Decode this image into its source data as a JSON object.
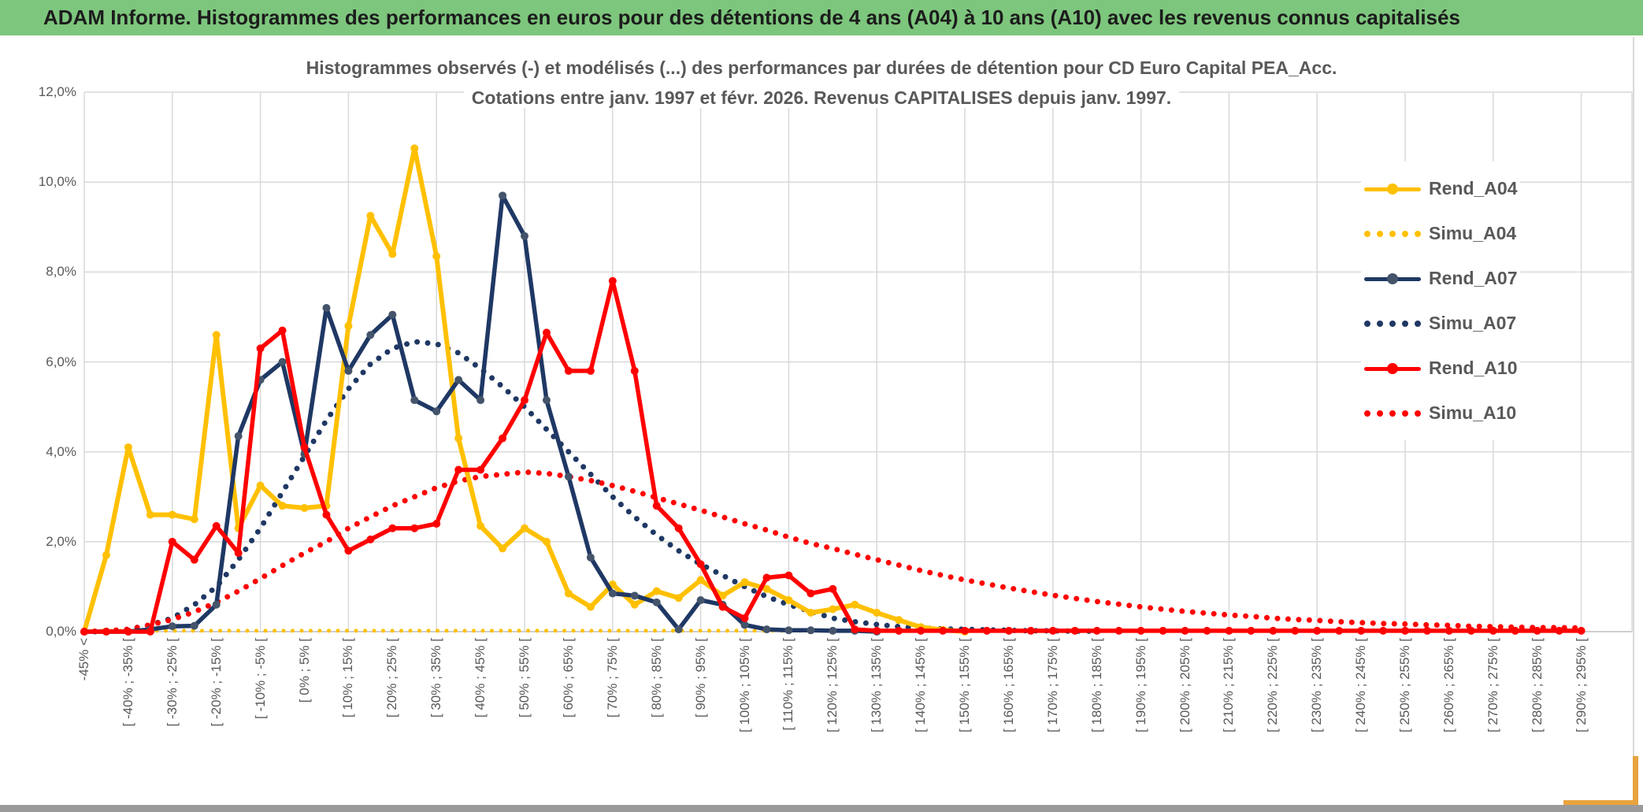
{
  "header": {
    "title": "ADAM Informe. Histogrammes des performances en euros pour des détentions de 4 ans (A04) à 10 ans (A10) avec les revenus connus capitalisés",
    "bar_color": "#7dc67d",
    "accent_color": "#e8a33d"
  },
  "chart": {
    "title_line1": "Histogrammes observés (-) et modélisés (...) des performances par durées de détention pour CD Euro Capital PEA_Acc.",
    "title_line2": "Cotations entre janv. 1997 et févr. 2026. Revenus CAPITALISES depuis janv. 1997.",
    "y_ticks": [
      "0,0%",
      "2,0%",
      "4,0%",
      "6,0%",
      "8,0%",
      "10,0%",
      "12,0%"
    ],
    "grid_color": "#d9d9d9",
    "axis_text_color": "#595959"
  },
  "chart_data": {
    "type": "line",
    "title": "Histogrammes observés (-) et modélisés (...) des performances par durées de détention pour CD Euro Capital PEA_Acc. Cotations entre janv. 1997 et févr. 2026. Revenus CAPITALISES depuis janv. 1997.",
    "xlabel": "",
    "ylabel": "",
    "ylim": [
      0,
      12
    ],
    "y_tick_step_pct": 2,
    "grid": true,
    "legend_position": "right-overlay",
    "categories": [
      "-45% <",
      "",
      "[ -40% ; -35% [",
      "",
      "[ -30% ; -25% [",
      "",
      "[ -20% ; -15% [",
      "",
      "[ -10% ; -5% [",
      "",
      "[ 0% ; 5% [",
      "",
      "[ 10% ; 15% [",
      "",
      "[ 20% ; 25% [",
      "",
      "[ 30% ; 35% [",
      "",
      "[ 40% ; 45% [",
      "",
      "[ 50% ; 55% [",
      "",
      "[ 60% ; 65% [",
      "",
      "[ 70% ; 75% [",
      "",
      "[ 80% ; 85% [",
      "",
      "[ 90% ; 95% [",
      "",
      "[ 100% ; 105% [",
      "",
      "[ 110% ; 115% [",
      "",
      "[ 120% ; 125% [",
      "",
      "[ 130% ; 135% [",
      "",
      "[ 140% ; 145% [",
      "",
      "[ 150% ; 155% [",
      "",
      "[ 160% ; 165% [",
      "",
      "[ 170% ; 175% [",
      "",
      "[ 180% ; 185% [",
      "",
      "[ 190% ; 195% [",
      "",
      "[ 200% ; 205% [",
      "",
      "[ 210% ; 215% [",
      "",
      "[ 220% ; 225% [",
      "",
      "[ 230% ; 235% [",
      "",
      "[ 240% ; 245% [",
      "",
      "[ 250% ; 255% [",
      "",
      "[ 260% ; 265% [",
      "",
      "[ 270% ; 275% [",
      "",
      "[ 280% ; 285% [",
      "",
      "[ 290% ; 295% ["
    ],
    "series": [
      {
        "name": "Rend_A04",
        "color": "#FFC000",
        "marker_color": "#FFC000",
        "style": "solid",
        "width": 6,
        "values": [
          0,
          1.7,
          4.1,
          2.6,
          2.6,
          2.5,
          6.6,
          2.3,
          3.25,
          2.8,
          2.75,
          2.8,
          6.8,
          9.25,
          8.4,
          10.75,
          8.35,
          4.3,
          2.35,
          1.85,
          2.3,
          2.0,
          0.85,
          0.55,
          1.05,
          0.6,
          0.9,
          0.75,
          1.15,
          0.8,
          1.1,
          0.95,
          0.7,
          0.42,
          0.5,
          0.6,
          0.42,
          0.26,
          0.1,
          0.04,
          0,
          null,
          null,
          null,
          null,
          null,
          null,
          null,
          null,
          null,
          null,
          null,
          null,
          null,
          null,
          null,
          null,
          null,
          null,
          null,
          null,
          null,
          null,
          null,
          null,
          null,
          null,
          null,
          null
        ]
      },
      {
        "name": "Simu_A04",
        "color": "#FFC000",
        "style": "dotted",
        "width": 5,
        "values": [
          0.02,
          0.02,
          0.02,
          0.02,
          0.02,
          0.02,
          0.02,
          0.02,
          0.02,
          0.02,
          0.02,
          0.02,
          0.02,
          0.02,
          0.02,
          0.02,
          0.02,
          0.02,
          0.02,
          0.02,
          0.02,
          0.02,
          0.02,
          0.02,
          0.02,
          0.02,
          0.02,
          0.02,
          0.02,
          0.02,
          0.02,
          0.02,
          0.02,
          0.02,
          0.02,
          0.02,
          0.02,
          0.02,
          0.02,
          null,
          null,
          null,
          null,
          null,
          null,
          null,
          null,
          null,
          null,
          null,
          null,
          null,
          null,
          null,
          null,
          null,
          null,
          null,
          null,
          null,
          null,
          null,
          null,
          null,
          null,
          null,
          null,
          null,
          null
        ]
      },
      {
        "name": "Rend_A07",
        "color": "#1F3864",
        "marker_color": "#44546A",
        "style": "solid",
        "width": 5.5,
        "values": [
          0,
          0,
          0,
          0.05,
          0.12,
          0.13,
          0.6,
          4.35,
          5.6,
          6.0,
          3.95,
          7.2,
          5.8,
          6.6,
          7.05,
          5.15,
          4.9,
          5.6,
          5.15,
          9.7,
          8.8,
          5.15,
          3.45,
          1.65,
          0.85,
          0.8,
          0.65,
          0.05,
          0.7,
          0.6,
          0.15,
          0.05,
          0.03,
          0.03,
          0.02,
          0.02,
          0,
          null,
          null,
          null,
          null,
          null,
          null,
          null,
          null,
          null,
          null,
          null,
          null,
          null,
          null,
          null,
          null,
          null,
          null,
          null,
          null,
          null,
          null,
          null,
          null,
          null,
          null,
          null,
          null,
          null,
          null,
          null,
          null
        ]
      },
      {
        "name": "Simu_A07",
        "color": "#1F3864",
        "style": "dotted",
        "width": 7,
        "values": [
          0,
          0,
          0.05,
          0.15,
          0.3,
          0.6,
          1.0,
          1.6,
          2.3,
          3.1,
          3.9,
          4.7,
          5.4,
          5.95,
          6.3,
          6.45,
          6.4,
          6.2,
          5.85,
          5.45,
          5.0,
          4.5,
          4.0,
          3.5,
          3.0,
          2.55,
          2.15,
          1.8,
          1.5,
          1.25,
          1.0,
          0.78,
          0.6,
          0.45,
          0.3,
          0.22,
          0.16,
          0.11,
          0.08,
          0.06,
          0.05,
          0.04,
          0.03,
          0.02,
          0.02,
          0.01,
          0.01,
          null,
          null,
          null,
          null,
          null,
          null,
          null,
          null,
          null,
          null,
          null,
          null,
          null,
          null,
          null,
          null,
          null,
          null,
          null,
          null,
          null,
          null
        ]
      },
      {
        "name": "Rend_A10",
        "color": "#FF0000",
        "marker_color": "#FF0000",
        "style": "solid",
        "width": 5.5,
        "values": [
          0,
          0,
          0,
          0,
          2.0,
          1.6,
          2.35,
          1.75,
          6.3,
          6.7,
          4.1,
          2.6,
          1.8,
          2.05,
          2.3,
          2.3,
          2.4,
          3.6,
          3.6,
          4.3,
          5.15,
          6.65,
          5.8,
          5.8,
          7.8,
          5.8,
          2.8,
          2.3,
          1.5,
          0.55,
          0.3,
          1.2,
          1.25,
          0.85,
          0.95,
          0.05,
          0.02,
          0.02,
          0.02,
          0.02,
          0.02,
          0.02,
          0.02,
          0.02,
          0.02,
          0.02,
          0.02,
          0.02,
          0.02,
          0.02,
          0.02,
          0.02,
          0.02,
          0.02,
          0.02,
          0.02,
          0.02,
          0.02,
          0.02,
          0.02,
          0.02,
          0.02,
          0.02,
          0.02,
          0.02,
          0.02,
          0.02,
          0.02,
          0.02
        ]
      },
      {
        "name": "Simu_A10",
        "color": "#FF0000",
        "style": "dotted",
        "width": 7,
        "values": [
          0,
          0.02,
          0.05,
          0.15,
          0.27,
          0.44,
          0.65,
          0.9,
          1.18,
          1.47,
          1.75,
          2.0,
          2.3,
          2.55,
          2.8,
          3.0,
          3.2,
          3.35,
          3.45,
          3.5,
          3.55,
          3.52,
          3.45,
          3.36,
          3.25,
          3.12,
          2.98,
          2.84,
          2.7,
          2.55,
          2.4,
          2.26,
          2.1,
          1.96,
          1.85,
          1.72,
          1.6,
          1.48,
          1.36,
          1.25,
          1.15,
          1.06,
          0.97,
          0.89,
          0.81,
          0.74,
          0.67,
          0.61,
          0.55,
          0.5,
          0.45,
          0.41,
          0.37,
          0.34,
          0.3,
          0.27,
          0.25,
          0.22,
          0.2,
          0.18,
          0.17,
          0.15,
          0.14,
          0.12,
          0.11,
          0.1,
          0.09,
          0.09,
          0.08
        ]
      }
    ]
  },
  "legend": {
    "entries": [
      {
        "label": "Rend_A04",
        "style": "solid",
        "color": "#FFC000",
        "marker_color": "#FFC000"
      },
      {
        "label": "Simu_A04",
        "style": "dotted",
        "color": "#FFC000"
      },
      {
        "label": "Rend_A07",
        "style": "solid",
        "color": "#1F3864",
        "marker_color": "#44546A"
      },
      {
        "label": "Simu_A07",
        "style": "dotted",
        "color": "#1F3864"
      },
      {
        "label": "Rend_A10",
        "style": "solid",
        "color": "#FF0000",
        "marker_color": "#FF0000"
      },
      {
        "label": "Simu_A10",
        "style": "dotted",
        "color": "#FF0000"
      }
    ]
  }
}
